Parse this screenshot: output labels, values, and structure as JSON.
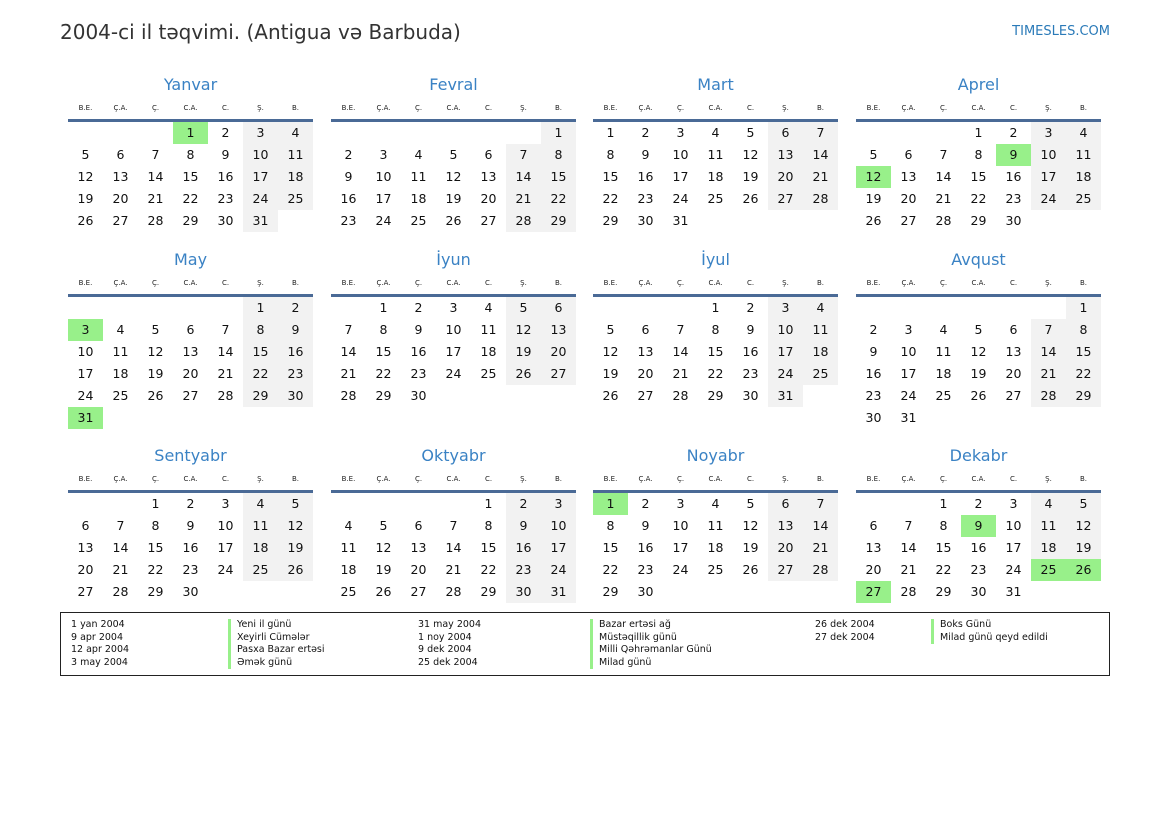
{
  "header": {
    "title": "2004-ci il təqvimi. (Antigua və Barbuda)",
    "brand": "TIMESLES.COM"
  },
  "weekdays": [
    "B.E.",
    "Ç.A.",
    "Ç.",
    "C.A.",
    "C.",
    "Ş.",
    "B."
  ],
  "months": [
    {
      "name": "Yanvar",
      "offset": 3,
      "days": 31,
      "holidays": [
        1
      ]
    },
    {
      "name": "Fevral",
      "offset": 6,
      "days": 29,
      "holidays": []
    },
    {
      "name": "Mart",
      "offset": 0,
      "days": 31,
      "holidays": []
    },
    {
      "name": "Aprel",
      "offset": 3,
      "days": 30,
      "holidays": [
        9,
        12
      ]
    },
    {
      "name": "May",
      "offset": 5,
      "days": 31,
      "holidays": [
        3,
        31
      ]
    },
    {
      "name": "İyun",
      "offset": 1,
      "days": 30,
      "holidays": []
    },
    {
      "name": "İyul",
      "offset": 3,
      "days": 31,
      "holidays": []
    },
    {
      "name": "Avqust",
      "offset": 6,
      "days": 31,
      "holidays": []
    },
    {
      "name": "Sentyabr",
      "offset": 2,
      "days": 30,
      "holidays": []
    },
    {
      "name": "Oktyabr",
      "offset": 4,
      "days": 31,
      "holidays": []
    },
    {
      "name": "Noyabr",
      "offset": 0,
      "days": 30,
      "holidays": [
        1
      ]
    },
    {
      "name": "Dekabr",
      "offset": 2,
      "days": 31,
      "holidays": [
        9,
        25,
        26,
        27
      ]
    }
  ],
  "holiday_color": "#98f08a",
  "legend": [
    [
      {
        "date": "1 yan 2004",
        "name": "Yeni il günü"
      },
      {
        "date": "9 apr 2004",
        "name": "Xeyirli Cümələr"
      },
      {
        "date": "12 apr 2004",
        "name": "Pasxa Bazar ertəsi"
      },
      {
        "date": "3 may 2004",
        "name": "Əmək günü"
      }
    ],
    [
      {
        "date": "31 may 2004",
        "name": "Bazar ertəsi ağ"
      },
      {
        "date": "1 noy 2004",
        "name": "Müstəqillik günü"
      },
      {
        "date": "9 dek 2004",
        "name": "Milli Qəhrəmanlar Günü"
      },
      {
        "date": "25 dek 2004",
        "name": "Milad günü"
      }
    ],
    [
      {
        "date": "26 dek 2004",
        "name": "Boks Günü"
      },
      {
        "date": "27 dek 2004",
        "name": "Milad günü qeyd edildi"
      }
    ]
  ]
}
